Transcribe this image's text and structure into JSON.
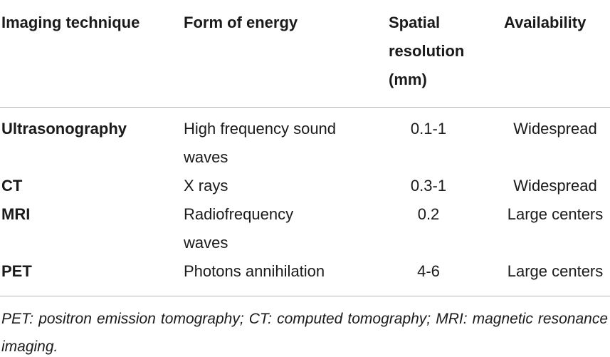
{
  "table": {
    "header": [
      "Imaging technique",
      "Form of energy",
      [
        "Spatial",
        "resolution",
        "(mm)"
      ],
      "Availability"
    ],
    "rows": [
      [
        "Ultrasonography",
        [
          "High frequency sound",
          "waves"
        ],
        "0.1-1",
        "Widespread"
      ],
      [
        "CT",
        "X rays",
        "0.3-1",
        "Widespread"
      ],
      [
        "MRI",
        [
          "Radiofrequency",
          "waves"
        ],
        "0.2",
        "Large centers"
      ],
      [
        "PET",
        "Photons annihilation",
        "4-6",
        "Large centers"
      ]
    ]
  },
  "footnote": "PET: positron emission tomography; CT: computed tomography; MRI: magnetic resonance imaging."
}
